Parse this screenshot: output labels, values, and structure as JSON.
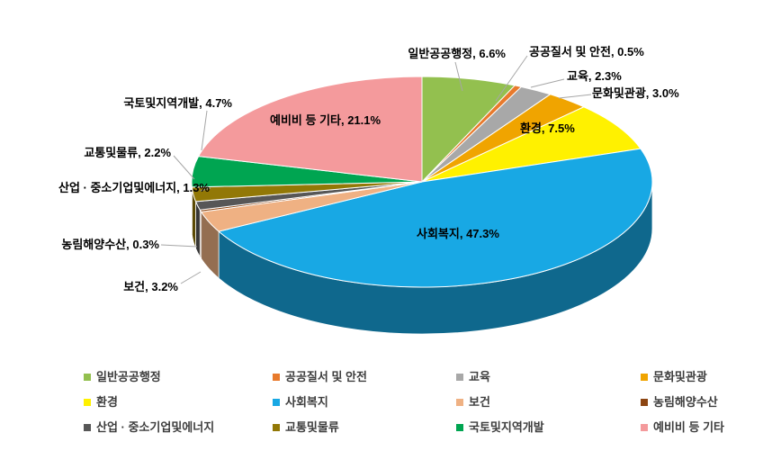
{
  "figure": {
    "background": "#FFFFFF",
    "label_separator": ", ",
    "unit_suffix": "%"
  },
  "chart_data": {
    "type": "pie",
    "style": "3d-pie",
    "title": "",
    "start_angle": "top",
    "direction": "clockwise",
    "unit": "%",
    "legend_position": "bottom",
    "legend_columns": 4,
    "leader_line_color": "#A6A6A6",
    "slices": [
      {
        "key": "general-public-admin",
        "label": "일반공공행정",
        "value": 6.6,
        "color": "#93C04F"
      },
      {
        "key": "public-order-safety",
        "label": "공공질서 및 안전",
        "value": 0.5,
        "color": "#E87A2C"
      },
      {
        "key": "education",
        "label": "교육",
        "value": 2.3,
        "color": "#A8A8A8"
      },
      {
        "key": "culture-tourism",
        "label": "문화및관광",
        "value": 3.0,
        "color": "#F0A400"
      },
      {
        "key": "environment",
        "label": "환경",
        "value": 7.5,
        "color": "#FFF100"
      },
      {
        "key": "social-welfare",
        "label": "사회복지",
        "value": 47.3,
        "color": "#18A8E4"
      },
      {
        "key": "health",
        "label": "보건",
        "value": 3.2,
        "color": "#EFB183"
      },
      {
        "key": "agriculture-maritime-fisheries",
        "label": "농림해양수산",
        "value": 0.3,
        "color": "#8C4512"
      },
      {
        "key": "industry-sme-energy",
        "label": "산업 · 중소기업및에너지",
        "value": 1.3,
        "color": "#575757"
      },
      {
        "key": "transport-logistics",
        "label": "교통및물류",
        "value": 2.2,
        "color": "#927806"
      },
      {
        "key": "land-regional-dev",
        "label": "국토및지역개발",
        "value": 4.7,
        "color": "#00A551"
      },
      {
        "key": "reserve-etc",
        "label": "예비비 등 기타",
        "value": 21.1,
        "color": "#F49A9C"
      }
    ]
  }
}
